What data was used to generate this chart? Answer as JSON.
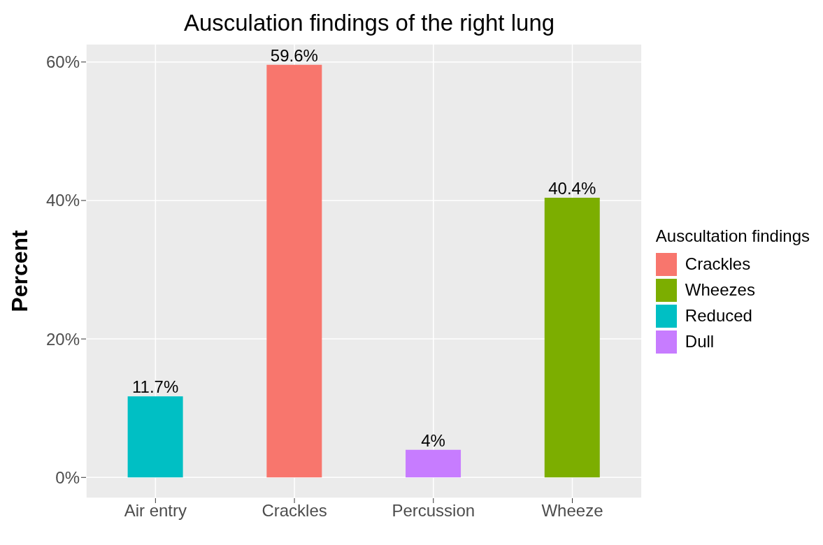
{
  "chart_data": {
    "type": "bar",
    "title": "Ausculation findings of the right lung",
    "ylabel": "Percent",
    "legend_title": "Auscultation findings",
    "categories": [
      "Air entry",
      "Crackles",
      "Percussion",
      "Wheeze"
    ],
    "series": [
      {
        "name": "Crackles",
        "color": "#f8766d",
        "values": [
          null,
          59.6,
          null,
          null
        ],
        "value_labels": [
          null,
          "59.6%",
          null,
          null
        ]
      },
      {
        "name": "Wheezes",
        "color": "#7cae00",
        "values": [
          null,
          null,
          null,
          40.4
        ],
        "value_labels": [
          null,
          null,
          null,
          "40.4%"
        ]
      },
      {
        "name": "Reduced",
        "color": "#00bfc4",
        "values": [
          11.7,
          null,
          null,
          null
        ],
        "value_labels": [
          "11.7%",
          null,
          null,
          null
        ]
      },
      {
        "name": "Dull",
        "color": "#c77cff",
        "values": [
          null,
          null,
          4,
          null
        ],
        "value_labels": [
          null,
          null,
          "4%",
          null
        ]
      }
    ],
    "stacked": true,
    "ylim": [
      -3,
      62.6
    ],
    "yticks": [
      {
        "value": 0,
        "label": "0%"
      },
      {
        "value": 20,
        "label": "20%"
      },
      {
        "value": 40,
        "label": "40%"
      },
      {
        "value": 60,
        "label": "60%"
      }
    ],
    "grid": true,
    "legend": "right"
  }
}
